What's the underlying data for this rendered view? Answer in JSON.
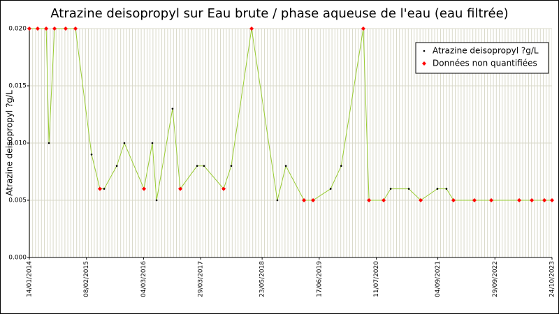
{
  "chart_data": {
    "type": "line",
    "title": "Atrazine deisopropyl sur Eau brute / phase aqueuse de l'eau (eau filtrée)",
    "y_label": "Atrazine deisopropyl ?g/L",
    "x": [
      "2014-01-14",
      "2014-03-12",
      "2014-05-09",
      "2014-05-28",
      "2014-07-05",
      "2014-09-19",
      "2014-11-25",
      "2015-03-15",
      "2015-05-11",
      "2015-06-09",
      "2015-09-03",
      "2015-10-25",
      "2016-03-07",
      "2016-05-03",
      "2016-06-01",
      "2016-09-18",
      "2016-11-10",
      "2017-03-05",
      "2017-04-21",
      "2017-09-02",
      "2017-10-24",
      "2018-03-12",
      "2018-09-04",
      "2018-11-01",
      "2019-03-05",
      "2019-05-06",
      "2019-09-03",
      "2019-11-14",
      "2020-04-13",
      "2020-05-22",
      "2020-08-30",
      "2020-10-17",
      "2021-02-18",
      "2021-05-10",
      "2021-09-01",
      "2021-11-02",
      "2021-12-20",
      "2022-05-12",
      "2022-09-04",
      "2023-03-14",
      "2023-06-08",
      "2023-09-02",
      "2023-10-24"
    ],
    "series": [
      {
        "name": "Atrazine deisopropyl ?g/L",
        "color": "#000000",
        "line_color": "#99cc33",
        "marker": "dot",
        "values": [
          0.02,
          0.02,
          0.02,
          0.01,
          0.02,
          0.02,
          0.02,
          0.009,
          0.006,
          0.006,
          0.008,
          0.01,
          0.006,
          0.01,
          0.005,
          0.013,
          0.006,
          0.008,
          0.008,
          0.006,
          0.008,
          0.02,
          0.005,
          0.008,
          0.005,
          0.005,
          0.006,
          0.008,
          0.02,
          0.005,
          0.005,
          0.006,
          0.006,
          0.005,
          0.006,
          0.006,
          0.005,
          0.005,
          0.005,
          0.005,
          0.005,
          0.005,
          0.005
        ]
      },
      {
        "name": "Données non quantifiées",
        "color": "#ff0000",
        "marker": "diamond",
        "values": [
          0.02,
          0.02,
          0.02,
          null,
          0.02,
          0.02,
          0.02,
          null,
          0.006,
          null,
          null,
          null,
          0.006,
          null,
          null,
          null,
          0.006,
          null,
          null,
          0.006,
          null,
          0.02,
          null,
          null,
          0.005,
          0.005,
          null,
          null,
          0.02,
          0.005,
          0.005,
          null,
          null,
          0.005,
          null,
          null,
          0.005,
          0.005,
          0.005,
          0.005,
          0.005,
          0.005,
          0.005
        ]
      }
    ],
    "xlim": [
      "2014-01-14",
      "2023-10-24"
    ],
    "xticks": [
      {
        "value": "2014-01-14",
        "label": "14/01/2014"
      },
      {
        "value": "2015-02-08",
        "label": "08/02/2015"
      },
      {
        "value": "2016-03-04",
        "label": "04/03/2016"
      },
      {
        "value": "2017-03-29",
        "label": "29/03/2017"
      },
      {
        "value": "2018-05-23",
        "label": "23/05/2018"
      },
      {
        "value": "2019-06-17",
        "label": "17/06/2019"
      },
      {
        "value": "2020-07-11",
        "label": "11/07/2020"
      },
      {
        "value": "2021-09-04",
        "label": "04/09/2021"
      },
      {
        "value": "2022-09-29",
        "label": "29/09/2022"
      },
      {
        "value": "2023-10-24",
        "label": "24/10/2023"
      }
    ],
    "ylim": [
      0,
      0.02
    ],
    "yticks": [
      {
        "value": 0,
        "label": "0.000"
      },
      {
        "value": 0.005,
        "label": "0.005"
      },
      {
        "value": 0.01,
        "label": "0.010"
      },
      {
        "value": 0.015,
        "label": "0.015"
      },
      {
        "value": 0.02,
        "label": "0.020"
      }
    ],
    "grid": true,
    "legend": "top-right"
  }
}
